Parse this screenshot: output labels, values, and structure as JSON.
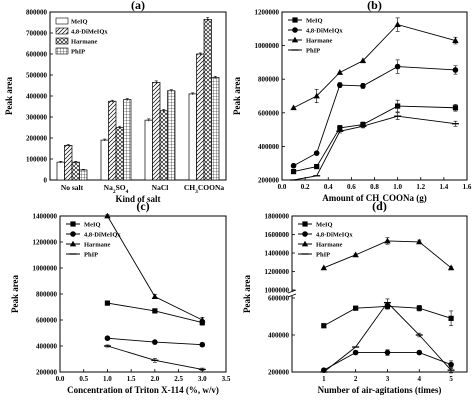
{
  "figure": {
    "panels": [
      {
        "id": "a",
        "label": "(a)",
        "type": "bar",
        "xlabel": "Kind of salt",
        "ylabel": "Peak area",
        "ylim": [
          0,
          800000
        ],
        "yticks": [
          0,
          100000,
          200000,
          300000,
          400000,
          500000,
          600000,
          700000,
          800000
        ],
        "categories": [
          "No salt",
          "Na2SO4",
          "NaCl",
          "CH3COONa"
        ],
        "category_labels": [
          {
            "main": "No salt"
          },
          {
            "main": "Na",
            "sub1": "2",
            "mid": "SO",
            "sub2": "4"
          },
          {
            "main": "NaCl"
          },
          {
            "main": "CH",
            "sub1": "3",
            "mid": "COONa"
          }
        ],
        "series": [
          {
            "name": "MeIQ",
            "values": [
              85000,
              190000,
              285000,
              410000
            ],
            "err": [
              4000,
              5000,
              6000,
              5000
            ],
            "fill": "#ffffff"
          },
          {
            "name": "4,8-DiMeIQx",
            "values": [
              165000,
              375000,
              465000,
              600000
            ],
            "err": [
              4000,
              5000,
              7000,
              5000
            ],
            "fill": "hatch"
          },
          {
            "name": "Harmane",
            "values": [
              85000,
              250000,
              330000,
              765000
            ],
            "err": [
              4000,
              6000,
              6000,
              9000
            ],
            "fill": "cross"
          },
          {
            "name": "PhIP",
            "values": [
              48000,
              383000,
              425000,
              488000
            ],
            "err": [
              3000,
              5000,
              5000,
              6000
            ],
            "fill": "grid"
          }
        ]
      },
      {
        "id": "b",
        "label": "(b)",
        "type": "line",
        "xlabel_parts": {
          "pre": "Amount of CH",
          "sub": "3",
          "post": "COONa (g)"
        },
        "ylabel": "Peak area",
        "xlim": [
          0.0,
          1.6
        ],
        "ylim": [
          200000,
          1200000
        ],
        "xticks": [
          0.0,
          0.2,
          0.4,
          0.6,
          0.8,
          1.0,
          1.2,
          1.4,
          1.6
        ],
        "yticks": [
          200000,
          400000,
          600000,
          800000,
          1000000,
          1200000
        ],
        "x": [
          0.1,
          0.3,
          0.5,
          0.7,
          1.0,
          1.5
        ],
        "series": [
          {
            "name": "MeIQ",
            "marker": "square",
            "values": [
              250000,
              280000,
              510000,
              530000,
              640000,
              630000
            ],
            "err": [
              0,
              0,
              15000,
              15000,
              35000,
              20000
            ]
          },
          {
            "name": "4,8-DiMeIQx",
            "marker": "circle",
            "values": [
              285000,
              360000,
              765000,
              760000,
              875000,
              855000
            ],
            "err": [
              0,
              0,
              15000,
              15000,
              40000,
              25000
            ]
          },
          {
            "name": "Harmane",
            "marker": "triangle",
            "values": [
              630000,
              700000,
              840000,
              910000,
              1125000,
              1030000
            ],
            "err": [
              0,
              40000,
              0,
              0,
              40000,
              20000
            ]
          },
          {
            "name": "PhIP",
            "marker": "dash",
            "values": [
              200000,
              225000,
              490000,
              520000,
              580000,
              535000
            ],
            "err": [
              0,
              0,
              10000,
              10000,
              20000,
              15000
            ]
          }
        ]
      },
      {
        "id": "c",
        "label": "(c)",
        "type": "line",
        "xlabel": "Concentration of Triton X-114 (%, w/v)",
        "ylabel": "Peak area",
        "xlim": [
          0.0,
          3.5
        ],
        "ylim": [
          200000,
          1400000
        ],
        "xticks": [
          0.0,
          0.5,
          1.0,
          1.5,
          2.0,
          2.5,
          3.0,
          3.5
        ],
        "yticks": [
          200000,
          400000,
          600000,
          800000,
          1000000,
          1200000,
          1400000
        ],
        "x": [
          1.0,
          2.0,
          3.0
        ],
        "series": [
          {
            "name": "MeIQ",
            "marker": "square",
            "values": [
              730000,
              670000,
              580000
            ],
            "err": [
              8000,
              15000,
              20000
            ]
          },
          {
            "name": "4,8-DiMeIQx",
            "marker": "circle",
            "values": [
              460000,
              430000,
              410000
            ],
            "err": [
              8000,
              12000,
              15000
            ]
          },
          {
            "name": "Harmane",
            "marker": "triangle",
            "values": [
              1400000,
              780000,
              600000
            ],
            "err": [
              10000,
              15000,
              20000
            ]
          },
          {
            "name": "PhIP",
            "marker": "dash",
            "values": [
              400000,
              290000,
              220000
            ],
            "err": [
              8000,
              15000,
              10000
            ]
          }
        ]
      },
      {
        "id": "d",
        "label": "(d)",
        "type": "line",
        "xlabel": "Number of air-agitations (times)",
        "ylabel": "Peak area",
        "xlim": [
          0,
          5.5
        ],
        "xticks": [
          1,
          2,
          3,
          4,
          5
        ],
        "ylim_lower": [
          200000,
          600000
        ],
        "ylim_upper": [
          1000000,
          1800000
        ],
        "yticks_lower": [
          200000,
          400000,
          600000
        ],
        "yticks_upper": [
          1000000,
          1200000,
          1400000,
          1600000,
          1800000
        ],
        "axis_break": true,
        "x": [
          1,
          2,
          3,
          4,
          5
        ],
        "series": [
          {
            "name": "MeIQ",
            "marker": "square",
            "values": [
              450000,
              545000,
              555000,
              545000,
              490000
            ],
            "err": [
              0,
              10000,
              15000,
              15000,
              40000
            ]
          },
          {
            "name": "4,8-DiMeIQx",
            "marker": "circle",
            "values": [
              210000,
              305000,
              305000,
              305000,
              240000
            ],
            "err": [
              0,
              10000,
              15000,
              10000,
              20000
            ]
          },
          {
            "name": "Harmane",
            "marker": "triangle",
            "values": [
              1240000,
              1380000,
              1530000,
              1520000,
              1240000
            ],
            "err": [
              0,
              10000,
              35000,
              20000,
              10000
            ]
          },
          {
            "name": "PhIP",
            "marker": "dash",
            "values": [
              200000,
              335000,
              575000,
              400000,
              210000
            ],
            "err": [
              0,
              0,
              20000,
              10000,
              15000
            ]
          }
        ]
      }
    ]
  }
}
